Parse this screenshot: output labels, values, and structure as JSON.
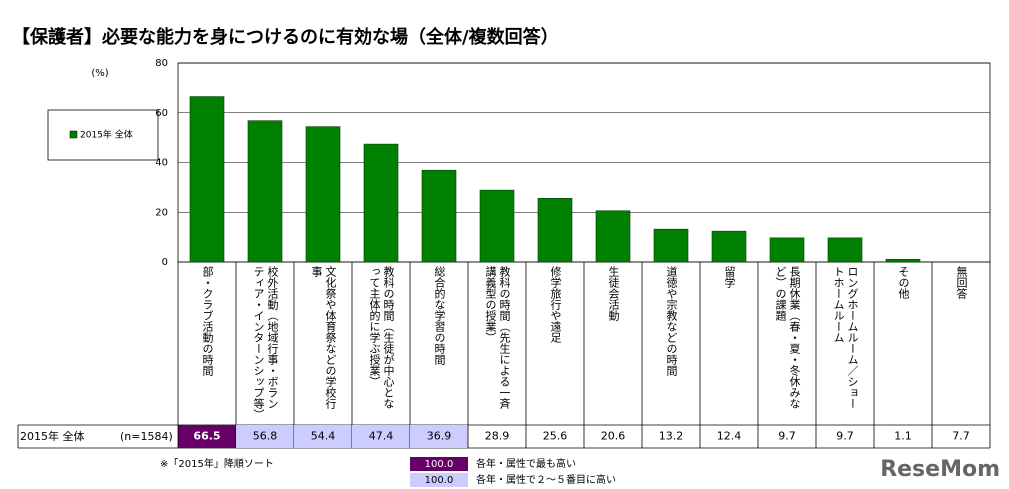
{
  "chart_data": {
    "type": "bar",
    "title": "【保護者】必要な能力を身につけるのに有効な場（全体/複数回答）",
    "y_unit": "(%)",
    "categories": [
      "部・クラブ活動の時間",
      "校外活動（地域行事・ボランティア・インターンシップ等）",
      "文化祭や体育祭などの学校行事",
      "教科の時間（生徒が中心となって主体的に学ぶ授業）",
      "総合的な学習の時間",
      "教科の時間（先生による一斉講義型の授業）",
      "修学旅行や遠足",
      "生徒会活動",
      "道徳や宗教などの時間",
      "留学",
      "長期休業（春・夏・冬休みなど）の課題",
      "ロングホームルーム／ショートホームルーム",
      "その他",
      "無回答"
    ],
    "series": [
      {
        "name": "2015年 全体",
        "sample": "(n=1584)",
        "color": "#008000",
        "values": [
          66.5,
          56.8,
          54.4,
          47.4,
          36.9,
          28.9,
          25.6,
          20.6,
          13.2,
          12.4,
          9.7,
          9.7,
          1.1,
          7.7
        ],
        "bar_shown": [
          true,
          true,
          true,
          true,
          true,
          true,
          true,
          true,
          true,
          true,
          true,
          true,
          true,
          false
        ],
        "cell_colors": [
          "#660066",
          "#ccccff",
          "#ccccff",
          "#ccccff",
          "#ccccff",
          null,
          null,
          null,
          null,
          null,
          null,
          null,
          null,
          null
        ]
      }
    ],
    "ylim": [
      0,
      80
    ],
    "yticks": [
      0,
      20,
      40,
      60,
      80
    ],
    "grid": true,
    "footnote": "※「2015年」降順ソート",
    "key": [
      {
        "label": "100.0",
        "text": "各年・属性で最も高い",
        "color": "#660066",
        "text_color": "#ffffff"
      },
      {
        "label": "100.0",
        "text": "各年・属性で２～５番目に高い",
        "color": "#ccccff",
        "text_color": "#000000"
      }
    ],
    "watermark": "ReseMom"
  }
}
